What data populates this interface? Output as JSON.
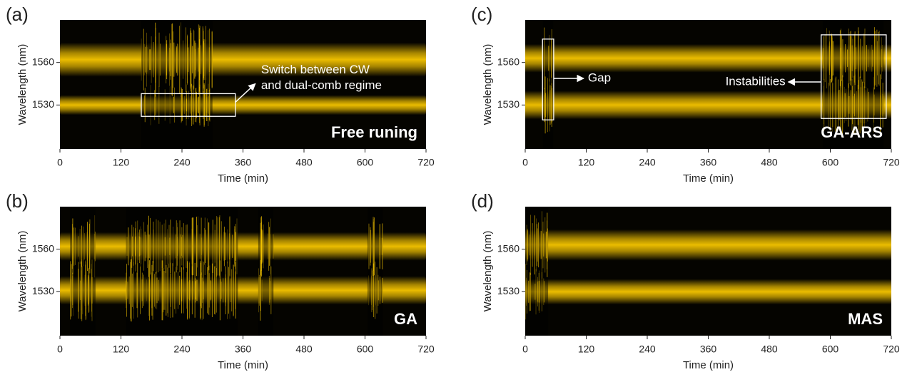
{
  "chart_data": [
    {
      "type": "heatmap",
      "panel": "(a)",
      "label": "Free runing",
      "xlabel": "Time (min)",
      "ylabel": "Wavelength (nm)",
      "xlim": [
        0,
        720
      ],
      "xticks": [
        0,
        120,
        240,
        360,
        480,
        600,
        720
      ],
      "ylim": [
        1499,
        1590
      ],
      "yticks": [
        1530,
        1560
      ],
      "color": "#f7c600",
      "bands": [
        {
          "center": 1562,
          "width": 12
        },
        {
          "center": 1530,
          "width": 7
        }
      ],
      "noise": [
        [
          160,
          300
        ]
      ],
      "boxes": [
        {
          "x": [
            160,
            345
          ],
          "y": [
            1522,
            1538
          ],
          "text": [
            "Switch between CW",
            "and dual-comb regime"
          ]
        }
      ]
    },
    {
      "type": "heatmap",
      "panel": "(b)",
      "label": "GA",
      "xlabel": "Time (min)",
      "ylabel": "Wavelength (nm)",
      "xlim": [
        0,
        720
      ],
      "xticks": [
        0,
        120,
        240,
        360,
        480,
        600,
        720
      ],
      "ylim": [
        1499,
        1590
      ],
      "yticks": [
        1530,
        1560
      ],
      "color": "#f7c600",
      "bands": [
        {
          "center": 1562,
          "width": 10
        },
        {
          "center": 1531,
          "width": 10
        }
      ],
      "noise": [
        [
          20,
          70
        ],
        [
          130,
          350
        ],
        [
          390,
          420
        ],
        [
          605,
          635
        ]
      ],
      "boxes": []
    },
    {
      "type": "heatmap",
      "panel": "(c)",
      "label": "GA-ARS",
      "xlabel": "Time (min)",
      "ylabel": "Wavelength (nm)",
      "xlim": [
        0,
        720
      ],
      "xticks": [
        0,
        120,
        240,
        360,
        480,
        600,
        720
      ],
      "ylim": [
        1499,
        1590
      ],
      "yticks": [
        1530,
        1560
      ],
      "color": "#f7c600",
      "bands": [
        {
          "center": 1563,
          "width": 10
        },
        {
          "center": 1530,
          "width": 10
        }
      ],
      "noise": [
        [
          35,
          55
        ],
        [
          585,
          705
        ]
      ],
      "boxes": [
        {
          "x": [
            34,
            56
          ],
          "y": [
            1519.5,
            1576.5
          ],
          "text": [
            "Gap"
          ]
        },
        {
          "x": [
            582,
            710
          ],
          "y": [
            1520.5,
            1579.5
          ],
          "text": [
            "Instabilities"
          ]
        }
      ]
    },
    {
      "type": "heatmap",
      "panel": "(d)",
      "label": "MAS",
      "xlabel": "Time (min)",
      "ylabel": "Wavelength (nm)",
      "xlim": [
        0,
        720
      ],
      "xticks": [
        0,
        120,
        240,
        360,
        480,
        600,
        720
      ],
      "ylim": [
        1499,
        1590
      ],
      "yticks": [
        1530,
        1560
      ],
      "color": "#f7c600",
      "bands": [
        {
          "center": 1563,
          "width": 11
        },
        {
          "center": 1530,
          "width": 9
        }
      ],
      "noise": [
        [
          0,
          45
        ]
      ],
      "boxes": []
    }
  ]
}
